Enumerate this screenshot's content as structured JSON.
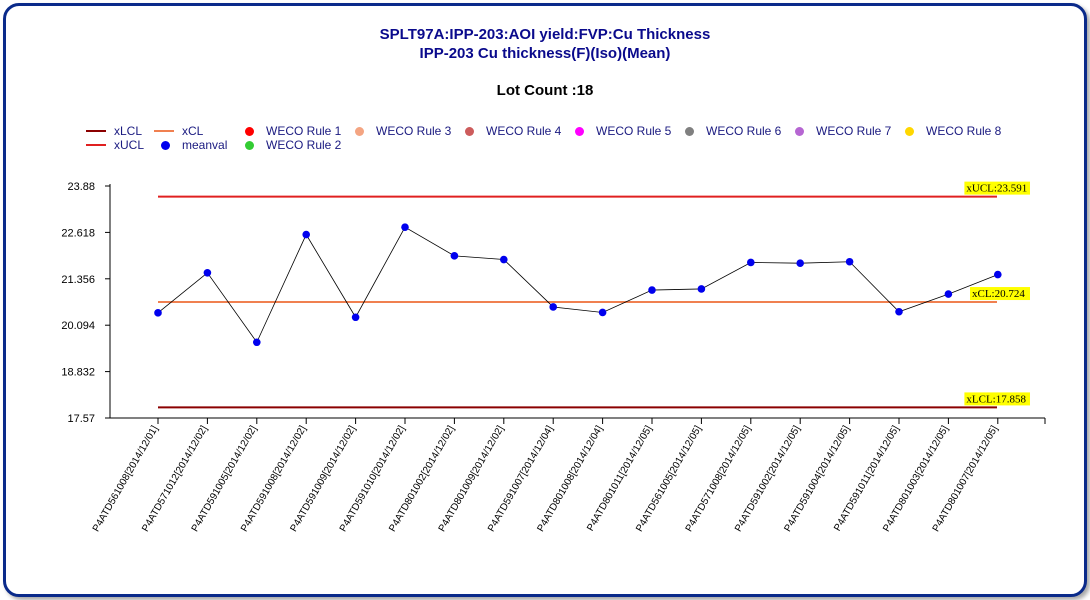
{
  "title_line1": "SPLT97A:IPP-203:AOI yield:FVP:Cu Thickness",
  "title_line2": "IPP-203 Cu thickness(F)(Iso)(Mean)",
  "lot_count": "Lot Count :18",
  "legend": [
    {
      "label": "xLCL",
      "kind": "line",
      "color": "#8b0000"
    },
    {
      "label": "xUCL",
      "kind": "line",
      "color": "#e02020"
    },
    {
      "label": "xCL",
      "kind": "line",
      "color": "#f08050"
    },
    {
      "label": "meanval",
      "kind": "dot",
      "color": "#0000ee"
    },
    {
      "label": "WECO Rule 1",
      "kind": "dot",
      "color": "#ff0000"
    },
    {
      "label": "WECO Rule 2",
      "kind": "dot",
      "color": "#33cc33"
    },
    {
      "label": "WECO Rule 3",
      "kind": "dot",
      "color": "#f4a582"
    },
    {
      "label": "WECO Rule 4",
      "kind": "dot",
      "color": "#cd5c5c"
    },
    {
      "label": "WECO Rule 5",
      "kind": "dot",
      "color": "#ff00ff"
    },
    {
      "label": "WECO Rule 6",
      "kind": "dot",
      "color": "#808080"
    },
    {
      "label": "WECO Rule 7",
      "kind": "dot",
      "color": "#b666d2"
    },
    {
      "label": "WECO Rule 8",
      "kind": "dot",
      "color": "#ffd700"
    }
  ],
  "chart_data": {
    "type": "line",
    "ylim": [
      17.57,
      23.88
    ],
    "yticks": [
      "23.88",
      "22.618",
      "21.356",
      "20.094",
      "18.832",
      "17.57"
    ],
    "limits": {
      "ucl": {
        "value": 23.591,
        "label": "xUCL:23.591",
        "color": "#e02020"
      },
      "cl": {
        "value": 20.724,
        "label": "xCL:20.724",
        "color": "#f08050"
      },
      "lcl": {
        "value": 17.858,
        "label": "xLCL:17.858",
        "color": "#8b0000"
      }
    },
    "categories": [
      "P4ATD561008[2014/12/01]",
      "P4ATD571012[2014/12/02]",
      "P4ATD591005[2014/12/02]",
      "P4ATD591008[2014/12/02]",
      "P4ATD591009[2014/12/02]",
      "P4ATD591010[2014/12/02]",
      "P4ATD801002[2014/12/02]",
      "P4ATD801009[2014/12/02]",
      "P4ATD591007[2014/12/04]",
      "P4ATD801008[2014/12/04]",
      "P4ATD801011[2014/12/05]",
      "P4ATD561005[2014/12/05]",
      "P4ATD571008[2014/12/05]",
      "P4ATD591002[2014/12/05]",
      "P4ATD591004[2014/12/05]",
      "P4ATD591011[2014/12/05]",
      "P4ATD801003[2014/12/05]",
      "P4ATD801007[2014/12/05]"
    ],
    "series": [
      {
        "name": "meanval",
        "color": "#0000ee",
        "values": [
          20.43,
          21.52,
          19.63,
          22.56,
          20.31,
          22.76,
          21.98,
          21.88,
          20.59,
          20.44,
          21.05,
          21.08,
          21.8,
          21.78,
          21.82,
          20.46,
          20.94,
          21.47
        ]
      }
    ]
  }
}
